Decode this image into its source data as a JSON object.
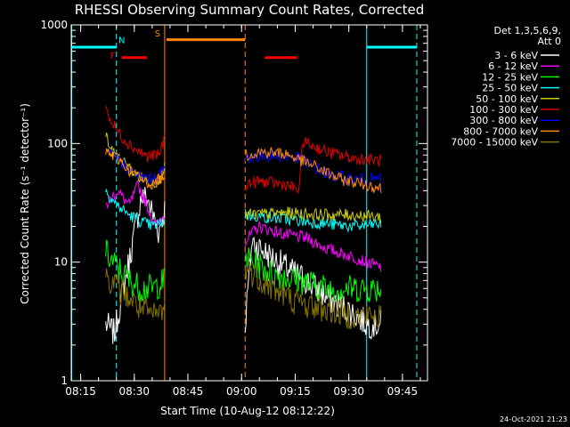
{
  "chart_data": {
    "type": "line",
    "title": "RHESSI Observing Summary Count Rates, Corrected",
    "xlabel": "Start Time (10-Aug-12 08:12:22)",
    "ylabel": "Corrected Count Rate (s⁻¹ detector⁻¹)",
    "yscale": "log",
    "ylim": [
      1,
      1000
    ],
    "xlim": [
      "08:12:22",
      "09:52:00"
    ],
    "x_ticks": [
      "08:15",
      "08:30",
      "08:45",
      "09:00",
      "09:15",
      "09:30",
      "09:45"
    ],
    "y_ticks": [
      "1",
      "10",
      "100",
      "1000"
    ],
    "legend_header": [
      "Det 1,3,5,6,9,",
      "Att 0"
    ],
    "legend_placement": "right",
    "timestamp": "24-Oct-2021 21:23",
    "flags": [
      {
        "label": "F",
        "color": "#ff0000"
      },
      {
        "label": "N",
        "color": "#00ffff"
      },
      {
        "label": "S",
        "color": "#ff8800"
      }
    ],
    "flag_intervals": [
      {
        "flag": "N",
        "color": "#00ffff",
        "start": "08:12:30",
        "end": "08:25:00",
        "level": 650
      },
      {
        "flag": "N",
        "color": "#00ffff",
        "start": "09:35:00",
        "end": "09:49:00",
        "level": 650
      },
      {
        "flag": "F",
        "color": "#ff0000",
        "start": "08:26:30",
        "end": "08:33:30",
        "level": 530
      },
      {
        "flag": "F",
        "color": "#ff0000",
        "start": "09:06:30",
        "end": "09:15:30",
        "level": 530
      },
      {
        "flag": "S",
        "color": "#ff8800",
        "start": "08:39:00",
        "end": "09:01:00",
        "level": 750
      }
    ],
    "vlines": [
      {
        "time": "08:12:30",
        "color": "#00ffff",
        "style": "solid"
      },
      {
        "time": "08:25:00",
        "color": "#00ffff",
        "style": "dashed"
      },
      {
        "time": "08:38:30",
        "color": "#ff8800",
        "style": "solid"
      },
      {
        "time": "09:01:00",
        "color": "#ff8800",
        "style": "dashed"
      },
      {
        "time": "09:35:00",
        "color": "#00ffff",
        "style": "solid"
      },
      {
        "time": "09:49:00",
        "color": "#00ffff",
        "style": "dashed"
      }
    ],
    "segments": [
      {
        "start": "08:22:00",
        "end": "08:38:30"
      },
      {
        "start": "09:01:00",
        "end": "09:39:00"
      }
    ],
    "series": [
      {
        "name": "3 - 6 keV",
        "color": "#ffffff",
        "seg1": [
          [
            0,
            3
          ],
          [
            0.15,
            2.5
          ],
          [
            0.3,
            6
          ],
          [
            0.45,
            14
          ],
          [
            0.6,
            35
          ],
          [
            0.7,
            35
          ],
          [
            0.8,
            25
          ],
          [
            0.9,
            18
          ],
          [
            1,
            28
          ]
        ],
        "seg2": [
          [
            0,
            3
          ],
          [
            0.05,
            15
          ],
          [
            0.15,
            12
          ],
          [
            0.3,
            9
          ],
          [
            0.45,
            7
          ],
          [
            0.6,
            5
          ],
          [
            0.75,
            4
          ],
          [
            0.9,
            3
          ],
          [
            1,
            3
          ]
        ]
      },
      {
        "name": "6 - 12 keV",
        "color": "#ff00ff",
        "seg1": [
          [
            0,
            30
          ],
          [
            0.2,
            40
          ],
          [
            0.4,
            30
          ],
          [
            0.55,
            45
          ],
          [
            0.7,
            30
          ],
          [
            0.85,
            20
          ],
          [
            1,
            25
          ]
        ],
        "seg2": [
          [
            0,
            15
          ],
          [
            0.1,
            20
          ],
          [
            0.3,
            17
          ],
          [
            0.45,
            16
          ],
          [
            0.6,
            13
          ],
          [
            0.8,
            11
          ],
          [
            1,
            9
          ]
        ]
      },
      {
        "name": "12 - 25 keV",
        "color": "#00ff00",
        "seg1": [
          [
            0,
            12
          ],
          [
            0.2,
            9
          ],
          [
            0.4,
            7
          ],
          [
            0.6,
            6
          ],
          [
            0.8,
            6
          ],
          [
            1,
            7
          ]
        ],
        "seg2": [
          [
            0,
            11
          ],
          [
            0.2,
            8
          ],
          [
            0.4,
            7
          ],
          [
            0.6,
            6
          ],
          [
            0.8,
            6
          ],
          [
            1,
            6
          ]
        ]
      },
      {
        "name": "25 - 50 keV",
        "color": "#00ffff",
        "seg1": [
          [
            0,
            40
          ],
          [
            0.2,
            30
          ],
          [
            0.4,
            25
          ],
          [
            0.6,
            22
          ],
          [
            0.8,
            20
          ],
          [
            1,
            22
          ]
        ],
        "seg2": [
          [
            0,
            25
          ],
          [
            0.3,
            23
          ],
          [
            0.6,
            21
          ],
          [
            0.8,
            20
          ],
          [
            1,
            21
          ]
        ]
      },
      {
        "name": "50 - 100 keV",
        "color": "#cccc00",
        "seg1": [
          [
            0,
            120
          ],
          [
            0.1,
            85
          ],
          [
            0.3,
            70
          ],
          [
            0.5,
            55
          ],
          [
            0.7,
            48
          ],
          [
            0.9,
            48
          ],
          [
            1,
            65
          ]
        ],
        "seg2": [
          [
            0,
            25
          ],
          [
            0.3,
            26
          ],
          [
            0.6,
            25
          ],
          [
            0.8,
            25
          ],
          [
            1,
            24
          ]
        ]
      },
      {
        "name": "100 - 300 keV",
        "color": "#dd0000",
        "seg1": [
          [
            0,
            200
          ],
          [
            0.1,
            150
          ],
          [
            0.3,
            110
          ],
          [
            0.5,
            90
          ],
          [
            0.7,
            78
          ],
          [
            0.9,
            80
          ],
          [
            1,
            110
          ]
        ],
        "seg2": [
          [
            0,
            45
          ],
          [
            0.1,
            48
          ],
          [
            0.3,
            45
          ],
          [
            0.4,
            40
          ],
          [
            0.42,
            105
          ],
          [
            0.6,
            85
          ],
          [
            0.8,
            75
          ],
          [
            1,
            72
          ]
        ]
      },
      {
        "name": "300 - 800 keV",
        "color": "#0000ff",
        "seg1": [
          [
            0,
            85
          ],
          [
            0.2,
            75
          ],
          [
            0.4,
            60
          ],
          [
            0.6,
            52
          ],
          [
            0.8,
            50
          ],
          [
            1,
            60
          ]
        ],
        "seg2": [
          [
            0,
            75
          ],
          [
            0.1,
            78
          ],
          [
            0.2,
            80
          ],
          [
            0.4,
            75
          ],
          [
            0.6,
            55
          ],
          [
            0.8,
            50
          ],
          [
            1,
            50
          ]
        ]
      },
      {
        "name": "800 - 7000 keV",
        "color": "#ff8800",
        "seg1": [
          [
            0,
            85
          ],
          [
            0.2,
            75
          ],
          [
            0.4,
            60
          ],
          [
            0.6,
            50
          ],
          [
            0.8,
            45
          ],
          [
            1,
            55
          ]
        ],
        "seg2": [
          [
            0,
            80
          ],
          [
            0.1,
            85
          ],
          [
            0.3,
            82
          ],
          [
            0.5,
            65
          ],
          [
            0.7,
            50
          ],
          [
            0.9,
            45
          ],
          [
            1,
            42
          ]
        ]
      },
      {
        "name": "7000 - 15000 keV",
        "color": "#807000",
        "seg1": [
          [
            0,
            8
          ],
          [
            0.2,
            6
          ],
          [
            0.4,
            5
          ],
          [
            0.6,
            4
          ],
          [
            0.8,
            3.5
          ],
          [
            1,
            4
          ]
        ],
        "seg2": [
          [
            0,
            9
          ],
          [
            0.2,
            6
          ],
          [
            0.4,
            4.5
          ],
          [
            0.6,
            4
          ],
          [
            0.8,
            3.5
          ],
          [
            1,
            3.5
          ]
        ]
      }
    ]
  }
}
